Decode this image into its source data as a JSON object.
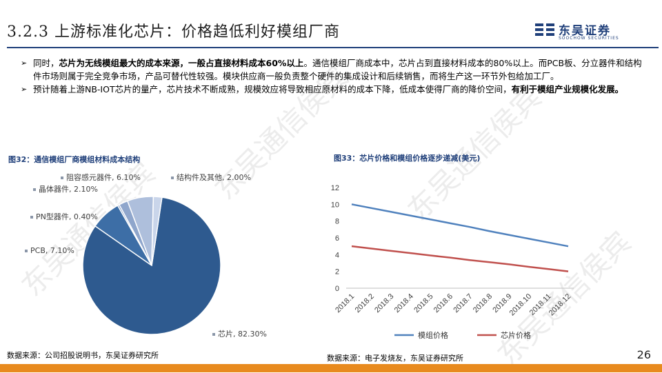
{
  "header": {
    "title": "3.2.3 上游标准化芯片：价格趋低利好模组厂商",
    "logo_cn": "东吴证券",
    "logo_en": "SOOCHOW SECURITIES"
  },
  "bullets": [
    {
      "pre": "同时，",
      "bold": "芯片为无线模组最大的成本来源，一般占直接材料成本60%以上",
      "post": "。通信模组厂商成本中，芯片占到直接材料成本的80%以上。而PCB板、分立器件和结构件市场则属于完全竞争市场，产品可替代性较强。模块供应商一般负责整个硬件的集成设计和后续销售，而将生产这一环节外包给加工厂。"
    },
    {
      "pre": "预计随着上游NB-IOT芯片的量产，芯片技术不断成熟，规模效应将导致相应原材料的成本下降，低成本使得厂商的降价空间，",
      "bold": "有利于模组产业规模化发展。",
      "post": ""
    }
  ],
  "figures": {
    "left_title": "图32：通信模组厂商模组材料成本结构",
    "right_title": "图33：芯片价格和模组价格逐步递减(美元)",
    "left_source": "数据来源：公司招股说明书，东吴证券研究所",
    "right_source": "数据来源：电子发烧友，东吴证券研究所"
  },
  "chart_data": [
    {
      "type": "pie",
      "title": "图32：通信模组厂商模组材料成本结构",
      "categories": [
        "芯片",
        "PCB",
        "PN型器件",
        "晶体器件",
        "阻容感元器件",
        "结构件及其他"
      ],
      "values": [
        82.3,
        7.1,
        0.4,
        2.1,
        6.1,
        2.0
      ],
      "labels": [
        "芯片, 82.30%",
        "PCB, 7.10%",
        "PN型器件, 0.40%",
        "晶体器件, 2.10%",
        "阻容感元器件, 6.10%",
        "结构件及其他, 2.00%"
      ],
      "colors": [
        "#2e5a8f",
        "#3d6ea6",
        "#6f8fbf",
        "#8fa6cc",
        "#aebfdc",
        "#c9d5ea"
      ]
    },
    {
      "type": "line",
      "title": "图33：芯片价格和模组价格逐步递减(美元)",
      "categories": [
        "2018.1",
        "2018.2",
        "2018.3",
        "2018.4",
        "2018.5",
        "2018.6",
        "2018.7",
        "2018.8",
        "2018.9",
        "2018.10",
        "2018.11",
        "2018.12"
      ],
      "series": [
        {
          "name": "模组价格",
          "color": "#4f81bd",
          "values": [
            10,
            9.55,
            9.1,
            8.65,
            8.2,
            7.75,
            7.3,
            6.8,
            6.35,
            5.9,
            5.45,
            5.0
          ]
        },
        {
          "name": "芯片价格",
          "color": "#c0504d",
          "values": [
            5,
            4.73,
            4.45,
            4.18,
            3.9,
            3.65,
            3.35,
            3.1,
            2.85,
            2.55,
            2.28,
            2.0
          ]
        }
      ],
      "yticks": [
        "0",
        "2",
        "4",
        "6",
        "8",
        "10",
        "12"
      ],
      "ylim": [
        0,
        12
      ],
      "grid": false,
      "legend": "bottom"
    }
  ],
  "page_number": "26",
  "watermark": "东吴通信侯宾"
}
